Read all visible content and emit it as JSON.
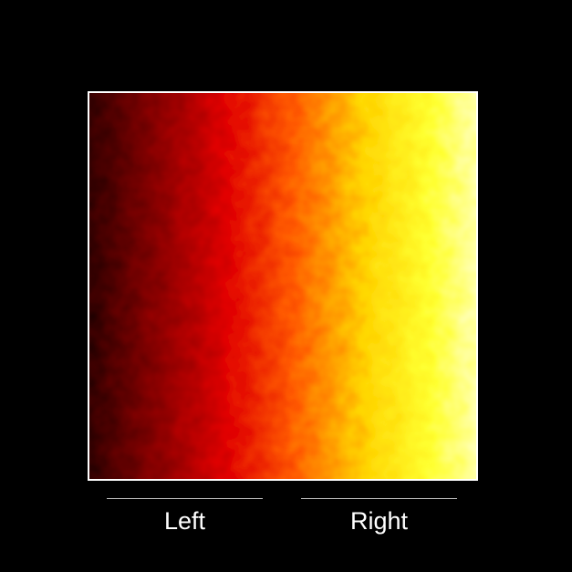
{
  "stimulus": {
    "colormap": [
      "#000000",
      "#8b0000",
      "#ff0000",
      "#ffa500",
      "#ffff00",
      "#ffffff"
    ],
    "border_color": "#ffffff"
  },
  "labels": {
    "left": "Left",
    "right": "Right"
  },
  "rule_color": "#bdbdbd"
}
